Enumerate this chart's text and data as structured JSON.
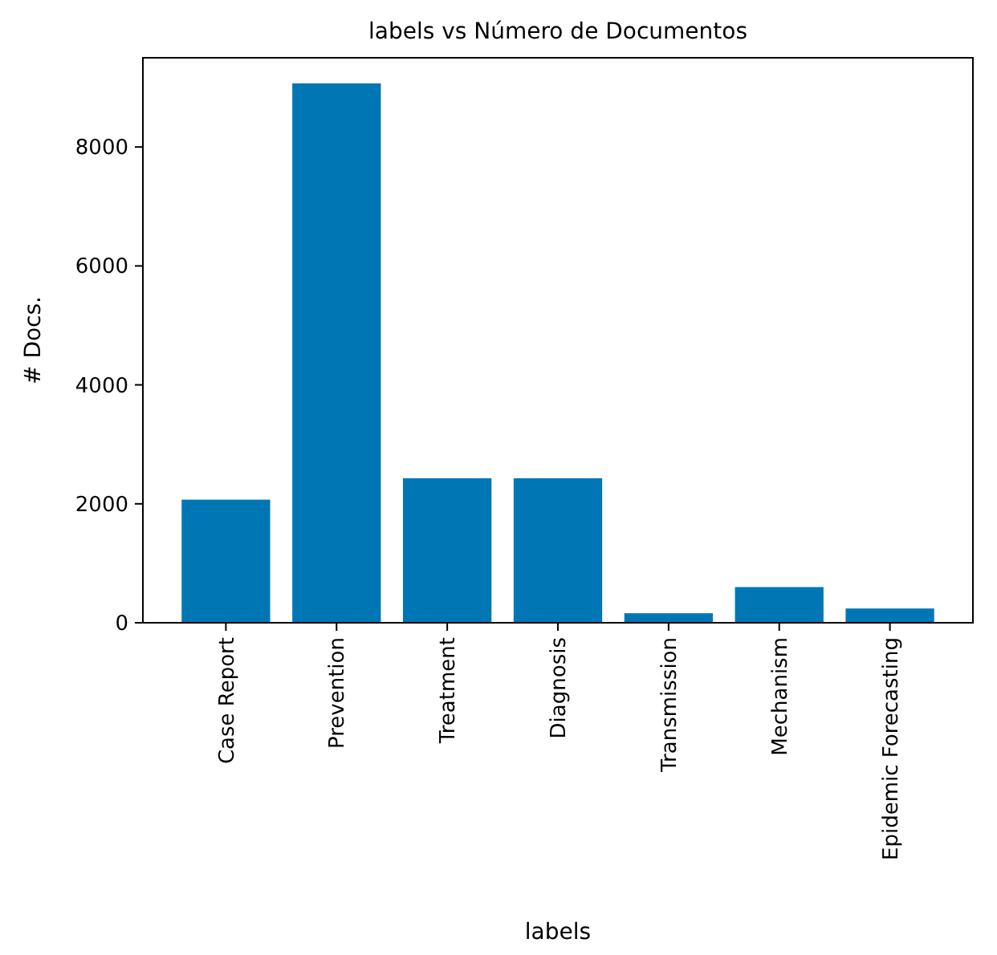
{
  "chart_data": {
    "type": "bar",
    "title": "labels vs Número de Documentos",
    "xlabel": "labels",
    "ylabel": "# Docs.",
    "categories": [
      "Case Report",
      "Prevention",
      "Treatment",
      "Diagnosis",
      "Transmission",
      "Mechanism",
      "Epidemic Forecasting"
    ],
    "values": [
      2070,
      9070,
      2430,
      2430,
      160,
      600,
      240
    ],
    "color": "#0077b4",
    "ylim": [
      0,
      9500
    ],
    "yticks": [
      0,
      2000,
      4000,
      6000,
      8000
    ],
    "grid": false
  }
}
